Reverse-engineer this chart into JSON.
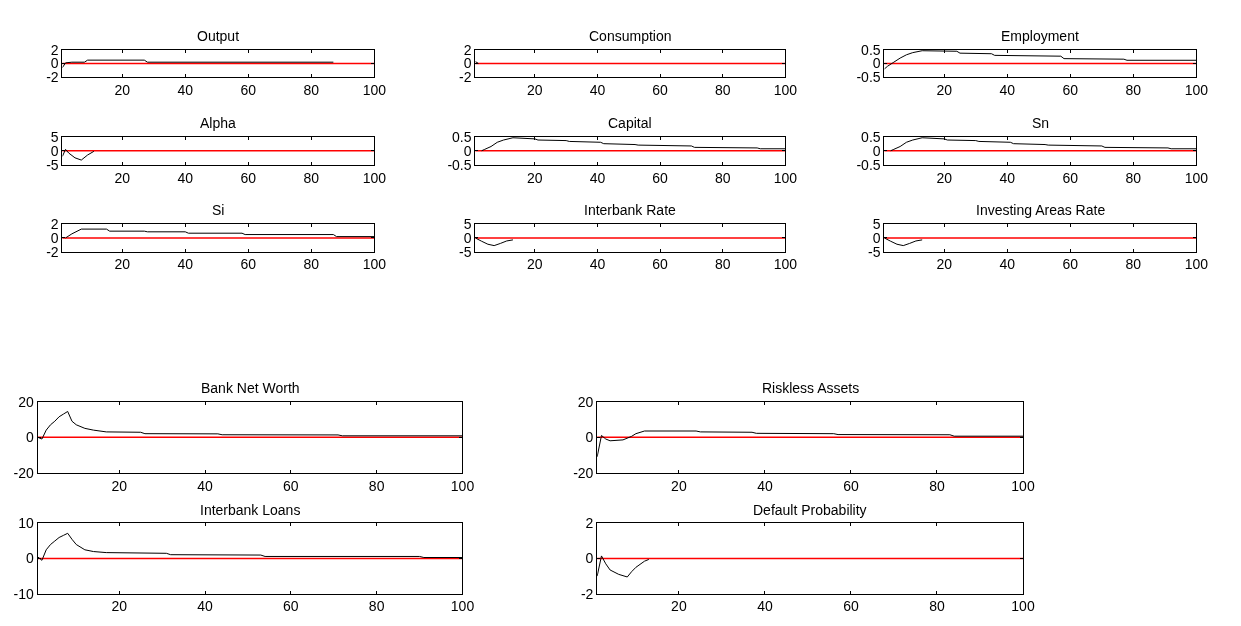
{
  "chart_data": [
    {
      "type": "line",
      "title": "Output",
      "xlim": [
        1,
        100
      ],
      "xticks": [
        20,
        40,
        60,
        80,
        100
      ],
      "ylim": [
        -2,
        2
      ],
      "yticks": [
        -2,
        0,
        2
      ],
      "ref_lines": [
        {
          "axis": "y",
          "value": 0,
          "color": "#ff0000"
        }
      ],
      "series": [
        {
          "color": "#000000",
          "x": [
            1,
            2,
            4,
            8,
            9,
            27,
            28,
            87
          ],
          "values": [
            -0.6,
            0.1,
            0.2,
            0.2,
            0.5,
            0.5,
            0.2,
            0.2
          ]
        }
      ]
    },
    {
      "type": "line",
      "title": "Consumption",
      "xlim": [
        1,
        100
      ],
      "xticks": [
        20,
        40,
        60,
        80,
        100
      ],
      "ylim": [
        -2,
        2
      ],
      "yticks": [
        -2,
        0,
        2
      ],
      "ref_lines": [
        {
          "axis": "y",
          "value": 0,
          "color": "#ff0000"
        }
      ],
      "series": [
        {
          "color": "#000000",
          "x": [
            1,
            2
          ],
          "values": [
            0.3,
            0
          ]
        }
      ]
    },
    {
      "type": "line",
      "title": "Employment",
      "xlim": [
        1,
        100
      ],
      "xticks": [
        20,
        40,
        60,
        80,
        100
      ],
      "ylim": [
        -0.5,
        0.5
      ],
      "yticks": [
        -0.5,
        0,
        0.5
      ],
      "ref_lines": [
        {
          "axis": "y",
          "value": 0,
          "color": "#ff0000"
        }
      ],
      "series": [
        {
          "color": "#000000",
          "x": [
            1,
            2,
            4,
            6,
            8,
            10,
            13,
            24,
            25,
            35,
            36,
            57,
            58,
            77,
            78,
            100
          ],
          "values": [
            -0.2,
            -0.1,
            0.05,
            0.2,
            0.32,
            0.4,
            0.47,
            0.45,
            0.38,
            0.36,
            0.3,
            0.27,
            0.18,
            0.16,
            0.12,
            0.12
          ]
        }
      ]
    },
    {
      "type": "line",
      "title": "Alpha",
      "xlim": [
        1,
        100
      ],
      "xticks": [
        20,
        40,
        60,
        80,
        100
      ],
      "ylim": [
        -5,
        5
      ],
      "yticks": [
        -5,
        0,
        5
      ],
      "ref_lines": [
        {
          "axis": "y",
          "value": 0,
          "color": "#ff0000"
        }
      ],
      "series": [
        {
          "color": "#000000",
          "x": [
            1,
            2,
            3,
            5,
            7,
            9,
            11
          ],
          "values": [
            -2,
            0.5,
            -0.8,
            -2.5,
            -3.3,
            -1.5,
            -0.2
          ]
        }
      ]
    },
    {
      "type": "line",
      "title": "Capital",
      "xlim": [
        1,
        100
      ],
      "xticks": [
        20,
        40,
        60,
        80,
        100
      ],
      "ylim": [
        -0.5,
        0.5
      ],
      "yticks": [
        -0.5,
        0,
        0.5
      ],
      "ref_lines": [
        {
          "axis": "y",
          "value": 0,
          "color": "#ff0000"
        }
      ],
      "series": [
        {
          "color": "#000000",
          "x": [
            3,
            4,
            6,
            8,
            10,
            13,
            20,
            21,
            30,
            31,
            41,
            42,
            52,
            53,
            70,
            71,
            91,
            92,
            100
          ],
          "values": [
            0,
            0.05,
            0.15,
            0.3,
            0.38,
            0.46,
            0.42,
            0.38,
            0.36,
            0.33,
            0.3,
            0.25,
            0.22,
            0.2,
            0.17,
            0.12,
            0.1,
            0.07,
            0.07
          ]
        }
      ]
    },
    {
      "type": "line",
      "title": "Sn",
      "xlim": [
        1,
        100
      ],
      "xticks": [
        20,
        40,
        60,
        80,
        100
      ],
      "ylim": [
        -0.5,
        0.5
      ],
      "yticks": [
        -0.5,
        0,
        0.5
      ],
      "ref_lines": [
        {
          "axis": "y",
          "value": 0,
          "color": "#ff0000"
        }
      ],
      "series": [
        {
          "color": "#000000",
          "x": [
            3,
            4,
            6,
            8,
            10,
            13,
            20,
            21,
            30,
            31,
            41,
            42,
            52,
            53,
            70,
            71,
            91,
            92,
            100
          ],
          "values": [
            0,
            0.05,
            0.15,
            0.3,
            0.38,
            0.46,
            0.42,
            0.38,
            0.36,
            0.33,
            0.3,
            0.25,
            0.22,
            0.2,
            0.17,
            0.12,
            0.1,
            0.07,
            0.07
          ]
        }
      ]
    },
    {
      "type": "line",
      "title": "Si",
      "xlim": [
        1,
        100
      ],
      "xticks": [
        20,
        40,
        60,
        80,
        100
      ],
      "ylim": [
        -2,
        2
      ],
      "yticks": [
        -2,
        0,
        2
      ],
      "ref_lines": [
        {
          "axis": "y",
          "value": 0,
          "color": "#ff0000"
        }
      ],
      "series": [
        {
          "color": "#000000",
          "x": [
            2,
            4,
            7,
            15,
            16,
            27,
            28,
            40,
            41,
            58,
            59,
            87,
            88,
            100
          ],
          "values": [
            0,
            0.6,
            1.3,
            1.3,
            1.0,
            1.0,
            0.9,
            0.9,
            0.7,
            0.7,
            0.5,
            0.5,
            0.2,
            0.2
          ]
        }
      ]
    },
    {
      "type": "line",
      "title": "Interbank Rate",
      "xlim": [
        1,
        100
      ],
      "xticks": [
        20,
        40,
        60,
        80,
        100
      ],
      "ylim": [
        -5,
        5
      ],
      "yticks": [
        -5,
        0,
        5
      ],
      "ref_lines": [
        {
          "axis": "y",
          "value": 0,
          "color": "#ff0000"
        }
      ],
      "series": [
        {
          "color": "#000000",
          "x": [
            1,
            3,
            5,
            7,
            9,
            11,
            13
          ],
          "values": [
            0,
            -1.2,
            -2.3,
            -2.8,
            -2,
            -1.1,
            -0.7
          ]
        }
      ]
    },
    {
      "type": "line",
      "title": "Investing Areas Rate",
      "xlim": [
        1,
        100
      ],
      "xticks": [
        20,
        40,
        60,
        80,
        100
      ],
      "ylim": [
        -5,
        5
      ],
      "yticks": [
        -5,
        0,
        5
      ],
      "ref_lines": [
        {
          "axis": "y",
          "value": 0,
          "color": "#ff0000"
        }
      ],
      "series": [
        {
          "color": "#000000",
          "x": [
            1,
            3,
            5,
            7,
            9,
            11,
            13
          ],
          "values": [
            0,
            -1.2,
            -2.3,
            -2.8,
            -2,
            -1.1,
            -0.7
          ]
        }
      ]
    },
    {
      "type": "line",
      "title": "Bank Net Worth",
      "xlim": [
        1,
        100
      ],
      "xticks": [
        20,
        40,
        60,
        80,
        100
      ],
      "ylim": [
        -20,
        20
      ],
      "yticks": [
        -20,
        0,
        20
      ],
      "ref_lines": [
        {
          "axis": "y",
          "value": 0,
          "color": "#ff0000"
        }
      ],
      "series": [
        {
          "color": "#000000",
          "x": [
            1,
            2,
            3,
            4,
            5,
            6,
            7,
            8,
            9,
            10,
            12,
            14,
            17,
            25,
            26,
            43,
            44,
            71,
            72,
            100
          ],
          "values": [
            0,
            -1,
            4,
            7,
            9,
            11.5,
            13,
            14.5,
            9,
            7,
            5,
            4,
            3,
            2.8,
            2,
            1.9,
            1.4,
            1.3,
            0.8,
            0.8
          ]
        }
      ]
    },
    {
      "type": "line",
      "title": "Riskless Assets",
      "xlim": [
        1,
        100
      ],
      "xticks": [
        20,
        40,
        60,
        80,
        100
      ],
      "ylim": [
        -20,
        20
      ],
      "yticks": [
        -20,
        0,
        20
      ],
      "ref_lines": [
        {
          "axis": "y",
          "value": 0,
          "color": "#ff0000"
        }
      ],
      "series": [
        {
          "color": "#000000",
          "x": [
            1,
            2,
            3,
            4,
            7,
            9,
            10,
            12,
            24,
            25,
            37,
            38,
            56,
            57,
            83,
            84,
            100
          ],
          "values": [
            -11,
            1,
            -1,
            -2,
            -1.5,
            0.5,
            2,
            3.5,
            3.5,
            3,
            2.8,
            2.2,
            2,
            1.5,
            1.4,
            0.6,
            0.6
          ]
        }
      ]
    },
    {
      "type": "line",
      "title": "Interbank Loans",
      "xlim": [
        1,
        100
      ],
      "xticks": [
        20,
        40,
        60,
        80,
        100
      ],
      "ylim": [
        -10,
        10
      ],
      "yticks": [
        -10,
        0,
        10
      ],
      "ref_lines": [
        {
          "axis": "y",
          "value": 0,
          "color": "#ff0000"
        }
      ],
      "series": [
        {
          "color": "#000000",
          "x": [
            1,
            2,
            3,
            4,
            5,
            6,
            7,
            8,
            9,
            10,
            12,
            14,
            17,
            31,
            32,
            53,
            54,
            90,
            91,
            100
          ],
          "values": [
            0.5,
            -0.5,
            2.5,
            4,
            5,
            6,
            6.6,
            7.2,
            5.5,
            4,
            2.5,
            2,
            1.7,
            1.5,
            1.1,
            1,
            0.6,
            0.6,
            0.3,
            0.3
          ]
        }
      ]
    },
    {
      "type": "line",
      "title": "Default Probability",
      "xlim": [
        1,
        100
      ],
      "xticks": [
        20,
        40,
        60,
        80,
        100
      ],
      "ylim": [
        -2,
        2
      ],
      "yticks": [
        -2,
        0,
        2
      ],
      "ref_lines": [
        {
          "axis": "y",
          "value": 0,
          "color": "#ff0000"
        }
      ],
      "series": [
        {
          "color": "#000000",
          "x": [
            1,
            2,
            3,
            4,
            6,
            8,
            9,
            10,
            12,
            13
          ],
          "values": [
            -1,
            0.15,
            -0.3,
            -0.65,
            -0.9,
            -1.05,
            -0.75,
            -0.5,
            -0.15,
            -0.05
          ]
        }
      ]
    }
  ]
}
